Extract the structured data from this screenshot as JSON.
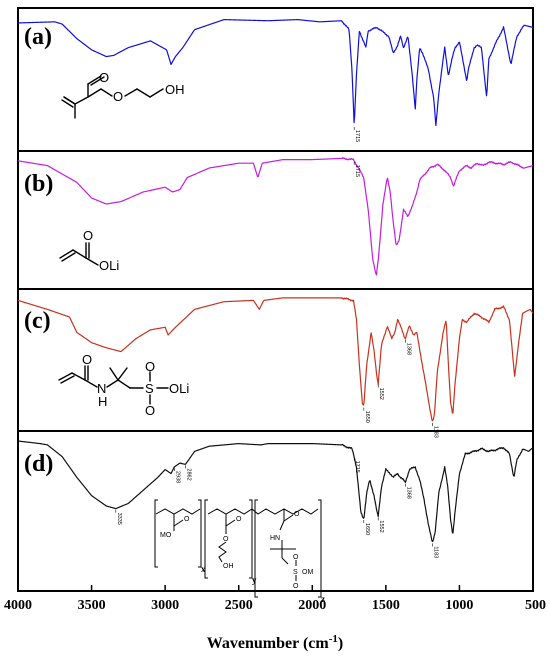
{
  "chart_data": {
    "type": "line",
    "xlabel_main": "Wavenumber (cm",
    "xlabel_sup": "-1",
    "xlabel_end": ")",
    "xlim": [
      4000,
      500
    ],
    "xticks": [
      "4000",
      "3500",
      "3000",
      "2500",
      "2000",
      "1500",
      "1000",
      "500"
    ],
    "panels": [
      {
        "label": "(a)",
        "color": "#1010d8",
        "molecule": {
          "O_carbonyl": "O",
          "O_ester": "O",
          "OH": "OH"
        },
        "peaks": [
          {
            "x": 1715,
            "label": "1715"
          }
        ],
        "points": [
          [
            4000,
            0.08
          ],
          [
            3750,
            0.07
          ],
          [
            3700,
            0.09
          ],
          [
            3600,
            0.22
          ],
          [
            3500,
            0.32
          ],
          [
            3400,
            0.38
          ],
          [
            3350,
            0.37
          ],
          [
            3250,
            0.3
          ],
          [
            3100,
            0.24
          ],
          [
            2990,
            0.32
          ],
          [
            2960,
            0.45
          ],
          [
            2930,
            0.38
          ],
          [
            2880,
            0.3
          ],
          [
            2800,
            0.14
          ],
          [
            2600,
            0.05
          ],
          [
            2300,
            0.06
          ],
          [
            2100,
            0.05
          ],
          [
            1950,
            0.07
          ],
          [
            1800,
            0.06
          ],
          [
            1750,
            0.14
          ],
          [
            1730,
            0.5
          ],
          [
            1715,
            1.0
          ],
          [
            1700,
            0.55
          ],
          [
            1680,
            0.15
          ],
          [
            1636,
            0.3
          ],
          [
            1620,
            0.15
          ],
          [
            1560,
            0.12
          ],
          [
            1480,
            0.2
          ],
          [
            1450,
            0.35
          ],
          [
            1420,
            0.28
          ],
          [
            1400,
            0.2
          ],
          [
            1380,
            0.3
          ],
          [
            1350,
            0.2
          ],
          [
            1320,
            0.55
          ],
          [
            1300,
            0.85
          ],
          [
            1290,
            0.6
          ],
          [
            1270,
            0.3
          ],
          [
            1250,
            0.35
          ],
          [
            1210,
            0.5
          ],
          [
            1175,
            0.75
          ],
          [
            1160,
            1.0
          ],
          [
            1140,
            0.7
          ],
          [
            1100,
            0.3
          ],
          [
            1075,
            0.55
          ],
          [
            1050,
            0.4
          ],
          [
            1030,
            0.3
          ],
          [
            1000,
            0.25
          ],
          [
            950,
            0.6
          ],
          [
            940,
            0.5
          ],
          [
            900,
            0.3
          ],
          [
            880,
            0.28
          ],
          [
            850,
            0.3
          ],
          [
            815,
            0.75
          ],
          [
            800,
            0.4
          ],
          [
            750,
            0.25
          ],
          [
            700,
            0.12
          ],
          [
            650,
            0.45
          ],
          [
            610,
            0.2
          ],
          [
            560,
            0.1
          ],
          [
            500,
            0.12
          ]
        ]
      },
      {
        "label": "(b)",
        "color": "#c41ce0",
        "molecule": {
          "O_carbonyl": "O",
          "OLi": "OLi"
        },
        "peaks": [
          {
            "x": 1715,
            "label": "1715"
          }
        ],
        "points": [
          [
            4000,
            0.04
          ],
          [
            3800,
            0.08
          ],
          [
            3600,
            0.22
          ],
          [
            3500,
            0.35
          ],
          [
            3400,
            0.4
          ],
          [
            3300,
            0.38
          ],
          [
            3150,
            0.3
          ],
          [
            3000,
            0.26
          ],
          [
            2950,
            0.3
          ],
          [
            2900,
            0.28
          ],
          [
            2850,
            0.18
          ],
          [
            2700,
            0.1
          ],
          [
            2500,
            0.06
          ],
          [
            2400,
            0.06
          ],
          [
            2370,
            0.18
          ],
          [
            2340,
            0.06
          ],
          [
            2200,
            0.03
          ],
          [
            2000,
            0.03
          ],
          [
            1800,
            0.02
          ],
          [
            1720,
            0.03
          ],
          [
            1700,
            0.07
          ],
          [
            1650,
            0.18
          ],
          [
            1620,
            0.45
          ],
          [
            1590,
            0.85
          ],
          [
            1565,
            1.0
          ],
          [
            1550,
            0.85
          ],
          [
            1520,
            0.4
          ],
          [
            1490,
            0.18
          ],
          [
            1470,
            0.3
          ],
          [
            1450,
            0.55
          ],
          [
            1430,
            0.75
          ],
          [
            1410,
            0.7
          ],
          [
            1380,
            0.45
          ],
          [
            1350,
            0.5
          ],
          [
            1320,
            0.42
          ],
          [
            1290,
            0.3
          ],
          [
            1270,
            0.2
          ],
          [
            1200,
            0.1
          ],
          [
            1150,
            0.07
          ],
          [
            1100,
            0.12
          ],
          [
            1060,
            0.18
          ],
          [
            1040,
            0.25
          ],
          [
            1000,
            0.12
          ],
          [
            950,
            0.08
          ],
          [
            920,
            0.1
          ],
          [
            880,
            0.06
          ],
          [
            840,
            0.08
          ],
          [
            800,
            0.05
          ],
          [
            700,
            0.07
          ],
          [
            650,
            0.05
          ],
          [
            560,
            0.1
          ],
          [
            500,
            0.08
          ]
        ]
      },
      {
        "label": "(c)",
        "color": "#c8321e",
        "molecule": {
          "O_carbonyl": "O",
          "NH": "N",
          "H": "H",
          "S": "S",
          "O_sulfonyl_top": "O",
          "O_sulfonyl_bottom": "O",
          "OLi": "OLi"
        },
        "peaks": [
          {
            "x": 1650,
            "label": "1650"
          },
          {
            "x": 1552,
            "label": "1552"
          },
          {
            "x": 1368,
            "label": "1368"
          },
          {
            "x": 1183,
            "label": "1183"
          }
        ],
        "points": [
          [
            4000,
            0.05
          ],
          [
            3800,
            0.12
          ],
          [
            3650,
            0.18
          ],
          [
            3600,
            0.3
          ],
          [
            3500,
            0.38
          ],
          [
            3400,
            0.42
          ],
          [
            3300,
            0.45
          ],
          [
            3200,
            0.35
          ],
          [
            3100,
            0.28
          ],
          [
            3000,
            0.26
          ],
          [
            2980,
            0.32
          ],
          [
            2930,
            0.26
          ],
          [
            2800,
            0.12
          ],
          [
            2600,
            0.06
          ],
          [
            2400,
            0.05
          ],
          [
            2360,
            0.12
          ],
          [
            2330,
            0.05
          ],
          [
            2200,
            0.03
          ],
          [
            2000,
            0.03
          ],
          [
            1800,
            0.03
          ],
          [
            1720,
            0.05
          ],
          [
            1700,
            0.2
          ],
          [
            1680,
            0.55
          ],
          [
            1660,
            0.85
          ],
          [
            1650,
            0.88
          ],
          [
            1630,
            0.55
          ],
          [
            1600,
            0.3
          ],
          [
            1580,
            0.45
          ],
          [
            1560,
            0.65
          ],
          [
            1552,
            0.7
          ],
          [
            1530,
            0.4
          ],
          [
            1490,
            0.25
          ],
          [
            1460,
            0.35
          ],
          [
            1440,
            0.3
          ],
          [
            1420,
            0.2
          ],
          [
            1390,
            0.28
          ],
          [
            1375,
            0.33
          ],
          [
            1368,
            0.35
          ],
          [
            1340,
            0.25
          ],
          [
            1310,
            0.32
          ],
          [
            1290,
            0.3
          ],
          [
            1260,
            0.5
          ],
          [
            1230,
            0.7
          ],
          [
            1200,
            0.9
          ],
          [
            1183,
            1.0
          ],
          [
            1170,
            0.95
          ],
          [
            1150,
            0.6
          ],
          [
            1110,
            0.3
          ],
          [
            1090,
            0.2
          ],
          [
            1075,
            0.55
          ],
          [
            1060,
            0.85
          ],
          [
            1045,
            0.95
          ],
          [
            1030,
            0.7
          ],
          [
            1000,
            0.35
          ],
          [
            980,
            0.2
          ],
          [
            950,
            0.22
          ],
          [
            900,
            0.15
          ],
          [
            850,
            0.18
          ],
          [
            800,
            0.22
          ],
          [
            760,
            0.12
          ],
          [
            700,
            0.1
          ],
          [
            660,
            0.2
          ],
          [
            625,
            0.65
          ],
          [
            600,
            0.4
          ],
          [
            570,
            0.15
          ],
          [
            520,
            0.12
          ],
          [
            500,
            0.15
          ]
        ]
      },
      {
        "label": "(d)",
        "color": "#111111",
        "molecule": {
          "MO": "MO",
          "O_x": "O",
          "x": "x",
          "O_y1": "O",
          "O_y2": "O",
          "OH": "OH",
          "y": "y",
          "O_z": "O",
          "HN": "HN",
          "S": "S",
          "O_s1": "O",
          "O_s2": "O",
          "OM": "OM",
          "z": "z"
        },
        "peaks": [
          {
            "x": 3335,
            "label": "3335"
          },
          {
            "x": 2938,
            "label": "2938"
          },
          {
            "x": 2862,
            "label": "2862"
          },
          {
            "x": 1715,
            "label": "1715"
          },
          {
            "x": 1650,
            "label": "1650"
          },
          {
            "x": 1552,
            "label": "1552"
          },
          {
            "x": 1368,
            "label": "1368"
          },
          {
            "x": 1183,
            "label": "1183"
          }
        ],
        "points": [
          [
            4000,
            0.0
          ],
          [
            3850,
            0.02
          ],
          [
            3800,
            0.03
          ],
          [
            3700,
            0.12
          ],
          [
            3600,
            0.28
          ],
          [
            3500,
            0.42
          ],
          [
            3400,
            0.5
          ],
          [
            3335,
            0.52
          ],
          [
            3250,
            0.48
          ],
          [
            3150,
            0.38
          ],
          [
            3050,
            0.28
          ],
          [
            3000,
            0.22
          ],
          [
            2960,
            0.25
          ],
          [
            2938,
            0.2
          ],
          [
            2900,
            0.17
          ],
          [
            2862,
            0.18
          ],
          [
            2800,
            0.08
          ],
          [
            2700,
            0.04
          ],
          [
            2500,
            0.02
          ],
          [
            2350,
            0.03
          ],
          [
            2300,
            0.02
          ],
          [
            2000,
            0.02
          ],
          [
            1800,
            0.03
          ],
          [
            1730,
            0.06
          ],
          [
            1715,
            0.12
          ],
          [
            1700,
            0.2
          ],
          [
            1670,
            0.55
          ],
          [
            1650,
            0.6
          ],
          [
            1630,
            0.4
          ],
          [
            1610,
            0.3
          ],
          [
            1580,
            0.42
          ],
          [
            1560,
            0.55
          ],
          [
            1552,
            0.58
          ],
          [
            1530,
            0.35
          ],
          [
            1500,
            0.22
          ],
          [
            1470,
            0.25
          ],
          [
            1450,
            0.28
          ],
          [
            1420,
            0.25
          ],
          [
            1400,
            0.28
          ],
          [
            1380,
            0.3
          ],
          [
            1368,
            0.32
          ],
          [
            1340,
            0.22
          ],
          [
            1300,
            0.2
          ],
          [
            1270,
            0.3
          ],
          [
            1240,
            0.45
          ],
          [
            1210,
            0.65
          ],
          [
            1190,
            0.75
          ],
          [
            1183,
            0.78
          ],
          [
            1165,
            0.7
          ],
          [
            1140,
            0.4
          ],
          [
            1100,
            0.2
          ],
          [
            1080,
            0.35
          ],
          [
            1060,
            0.6
          ],
          [
            1045,
            0.72
          ],
          [
            1030,
            0.55
          ],
          [
            1000,
            0.25
          ],
          [
            960,
            0.1
          ],
          [
            900,
            0.08
          ],
          [
            850,
            0.06
          ],
          [
            800,
            0.08
          ],
          [
            760,
            0.07
          ],
          [
            700,
            0.05
          ],
          [
            660,
            0.1
          ],
          [
            630,
            0.28
          ],
          [
            610,
            0.15
          ],
          [
            570,
            0.06
          ],
          [
            530,
            0.08
          ],
          [
            500,
            0.05
          ]
        ]
      }
    ]
  }
}
